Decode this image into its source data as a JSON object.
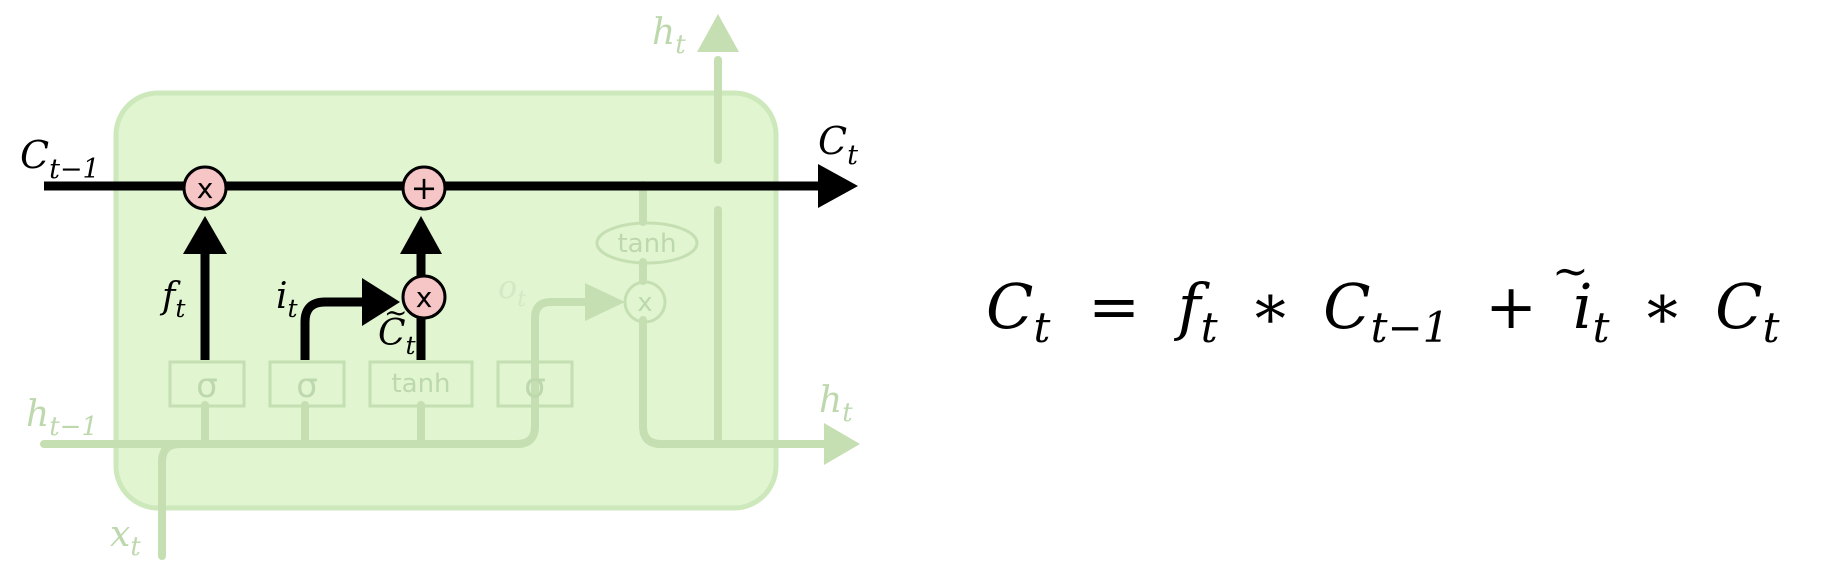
{
  "colors": {
    "cell_fill": "#e0f5d0",
    "cell_stroke": "#cde8bb",
    "faded_line": "#c5dfb3",
    "faded_text": "#bed8ad",
    "active_line": "#000000",
    "op_fill": "#f6c5c5",
    "background": "#ffffff"
  },
  "diagram": {
    "label_c_prev": {
      "base": "C",
      "sub": "t−1"
    },
    "label_c_out": {
      "base": "C",
      "sub": "t"
    },
    "label_h_top": {
      "base": "h",
      "sub": "t"
    },
    "label_h_right": {
      "base": "h",
      "sub": "t"
    },
    "label_h_prev": {
      "base": "h",
      "sub": "t−1"
    },
    "label_x": {
      "base": "x",
      "sub": "t"
    },
    "label_f": {
      "base": "f",
      "sub": "t"
    },
    "label_i": {
      "base": "i",
      "sub": "t"
    },
    "label_o": {
      "base": "o",
      "sub": "t"
    },
    "label_c_tilde": {
      "base": "C",
      "sub": "t",
      "accent": "~"
    },
    "op_forget": "x",
    "op_add": "+",
    "op_input": "x",
    "op_output": "x",
    "layer_sigma_1": "σ",
    "layer_sigma_2": "σ",
    "layer_tanh": "tanh",
    "layer_sigma_3": "σ",
    "pointwise_tanh": "tanh"
  },
  "equation": {
    "lhs": {
      "base": "C",
      "sub": "t"
    },
    "eq": "=",
    "t1a": {
      "base": "f",
      "sub": "t"
    },
    "op1": "∗",
    "t1b": {
      "base": "C",
      "sub": "t−1"
    },
    "plus": "+",
    "t2a": {
      "base": "i",
      "sub": "t"
    },
    "op2": "∗",
    "t2b": {
      "base": "C",
      "sub": "t",
      "accent": "~"
    }
  }
}
